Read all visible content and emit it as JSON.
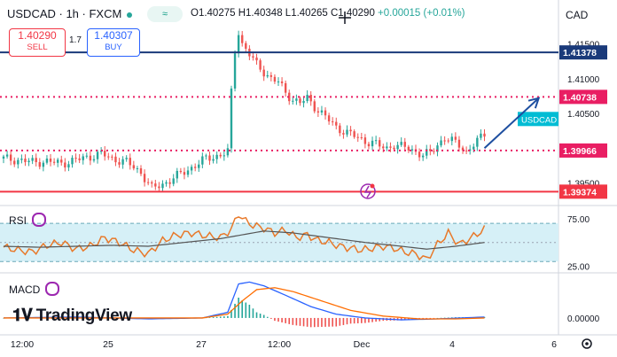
{
  "header": {
    "symbol": "USDCAD · 1h · FXCM",
    "open": "O1.40275",
    "high": "H1.40348",
    "low": "L1.40265",
    "close": "C1.40290",
    "change": "+0.00015 (+0.01%)",
    "currency": "CAD",
    "badge": "≈"
  },
  "trade": {
    "sell_price": "1.40290",
    "sell_label": "SELL",
    "spread": "1.7",
    "buy_price": "1.40307",
    "buy_label": "BUY"
  },
  "branding": "TradingView",
  "chart_data": [
    {
      "type": "candlestick",
      "symbol": "USDCAD",
      "interval": "1h",
      "x_tick_labels": [
        "12:00",
        "25",
        "27",
        "12:00",
        "Dec",
        "4",
        "6"
      ],
      "y_tick_labels": [
        "1.41500",
        "1.41000",
        "1.40500",
        "1.39500"
      ],
      "ylim": [
        1.392,
        1.4175
      ],
      "close_path": [
        [
          0,
          1.3985
        ],
        [
          4,
          1.3983
        ],
        [
          8,
          1.398
        ],
        [
          12,
          1.3981
        ],
        [
          16,
          1.3978
        ],
        [
          20,
          1.3983
        ],
        [
          24,
          1.3988
        ],
        [
          27,
          1.3992
        ],
        [
          30,
          1.3985
        ],
        [
          34,
          1.398
        ],
        [
          38,
          1.3965
        ],
        [
          41,
          1.3942
        ],
        [
          44,
          1.3948
        ],
        [
          48,
          1.396
        ],
        [
          52,
          1.3972
        ],
        [
          56,
          1.3985
        ],
        [
          60,
          1.399
        ],
        [
          62,
          1.3995
        ],
        [
          63,
          1.408
        ],
        [
          64,
          1.414
        ],
        [
          65,
          1.4168
        ],
        [
          66,
          1.415
        ],
        [
          68,
          1.4135
        ],
        [
          70,
          1.412
        ],
        [
          72,
          1.411
        ],
        [
          74,
          1.41
        ],
        [
          76,
          1.4095
        ],
        [
          78,
          1.408
        ],
        [
          80,
          1.407
        ],
        [
          82,
          1.4065
        ],
        [
          84,
          1.4072
        ],
        [
          86,
          1.406
        ],
        [
          88,
          1.405
        ],
        [
          90,
          1.404
        ],
        [
          92,
          1.403
        ],
        [
          94,
          1.4025
        ],
        [
          96,
          1.402
        ],
        [
          98,
          1.4015
        ],
        [
          100,
          1.401
        ],
        [
          102,
          1.4008
        ],
        [
          104,
          1.4003
        ],
        [
          106,
          1.4
        ],
        [
          108,
          1.4005
        ],
        [
          110,
          1.4002
        ],
        [
          112,
          1.4
        ],
        [
          114,
          1.3995
        ],
        [
          116,
          1.399
        ],
        [
          118,
          1.3993
        ],
        [
          120,
          1.4005
        ],
        [
          122,
          1.4015
        ],
        [
          124,
          1.401
        ],
        [
          126,
          1.4005
        ],
        [
          128,
          1.3995
        ],
        [
          130,
          1.4005
        ],
        [
          132,
          1.4015
        ],
        [
          133,
          1.402
        ]
      ],
      "lines": [
        {
          "label": "1.41378",
          "value": 1.41378,
          "style": "solid",
          "color": "#1a3a7a"
        },
        {
          "label": "1.40738",
          "value": 1.40738,
          "style": "dotted",
          "color": "#e91e63"
        },
        {
          "label": "1.39966",
          "value": 1.39966,
          "style": "dotted",
          "color": "#e91e63"
        },
        {
          "label": "1.39374",
          "value": 1.39374,
          "style": "solid",
          "color": "#f23645"
        }
      ],
      "last_price_tag": "USDCAD",
      "projection": {
        "from": [
          133,
          1.4
        ],
        "to": [
          148,
          1.4072
        ]
      },
      "colors": {
        "up": "#26a69a",
        "down": "#ef5350"
      }
    },
    {
      "type": "line",
      "name": "RSI",
      "ylim": [
        20,
        85
      ],
      "y_tick_labels": [
        "75.00",
        "25.00"
      ],
      "band": [
        30,
        70
      ],
      "midline": 50,
      "rsi": [
        [
          0,
          45
        ],
        [
          4,
          42
        ],
        [
          8,
          40
        ],
        [
          12,
          47
        ],
        [
          16,
          50
        ],
        [
          20,
          43
        ],
        [
          24,
          46
        ],
        [
          28,
          55
        ],
        [
          32,
          50
        ],
        [
          36,
          42
        ],
        [
          40,
          38
        ],
        [
          44,
          52
        ],
        [
          48,
          58
        ],
        [
          52,
          60
        ],
        [
          56,
          57
        ],
        [
          60,
          55
        ],
        [
          63,
          64
        ],
        [
          65,
          80
        ],
        [
          67,
          72
        ],
        [
          69,
          68
        ],
        [
          72,
          65
        ],
        [
          75,
          60
        ],
        [
          78,
          63
        ],
        [
          81,
          55
        ],
        [
          84,
          58
        ],
        [
          87,
          52
        ],
        [
          90,
          50
        ],
        [
          93,
          46
        ],
        [
          96,
          44
        ],
        [
          99,
          42
        ],
        [
          102,
          44
        ],
        [
          105,
          46
        ],
        [
          108,
          44
        ],
        [
          111,
          40
        ],
        [
          114,
          38
        ],
        [
          117,
          32
        ],
        [
          120,
          48
        ],
        [
          123,
          60
        ],
        [
          126,
          48
        ],
        [
          129,
          54
        ],
        [
          133,
          64
        ]
      ],
      "ma": [
        [
          0,
          46
        ],
        [
          10,
          45
        ],
        [
          20,
          46
        ],
        [
          30,
          47
        ],
        [
          40,
          46
        ],
        [
          50,
          50
        ],
        [
          60,
          54
        ],
        [
          66,
          58
        ],
        [
          72,
          62
        ],
        [
          80,
          60
        ],
        [
          90,
          55
        ],
        [
          100,
          50
        ],
        [
          110,
          46
        ],
        [
          117,
          43
        ],
        [
          125,
          46
        ],
        [
          133,
          50
        ]
      ],
      "colors": {
        "rsi": "#e8792a",
        "ma": "#555555",
        "band": "#d6f0f7"
      }
    },
    {
      "type": "line",
      "name": "MACD",
      "ylim": [
        -0.0008,
        0.0022
      ],
      "y_tick_labels": [
        "0.00000"
      ],
      "macd": [
        [
          0,
          0.0
        ],
        [
          20,
          5e-05
        ],
        [
          40,
          -5e-05
        ],
        [
          55,
          0.0
        ],
        [
          62,
          0.0003
        ],
        [
          65,
          0.0018
        ],
        [
          68,
          0.0019
        ],
        [
          72,
          0.0017
        ],
        [
          78,
          0.0012
        ],
        [
          85,
          0.0006
        ],
        [
          92,
          0.0002
        ],
        [
          100,
          0.0
        ],
        [
          110,
          -0.0001
        ],
        [
          120,
          -5e-05
        ],
        [
          133,
          5e-05
        ]
      ],
      "signal": [
        [
          0,
          0.0
        ],
        [
          30,
          0.0
        ],
        [
          55,
          0.0
        ],
        [
          62,
          0.0002
        ],
        [
          66,
          0.0009
        ],
        [
          70,
          0.0015
        ],
        [
          75,
          0.0016
        ],
        [
          80,
          0.0014
        ],
        [
          88,
          0.0009
        ],
        [
          96,
          0.0004
        ],
        [
          105,
          0.0001
        ],
        [
          115,
          -5e-05
        ],
        [
          125,
          -5e-05
        ],
        [
          133,
          0.0
        ]
      ],
      "colors": {
        "macd": "#2962ff",
        "signal": "#ff6d00",
        "hist_up": "#26a69a",
        "hist_down": "#ef5350"
      }
    }
  ]
}
